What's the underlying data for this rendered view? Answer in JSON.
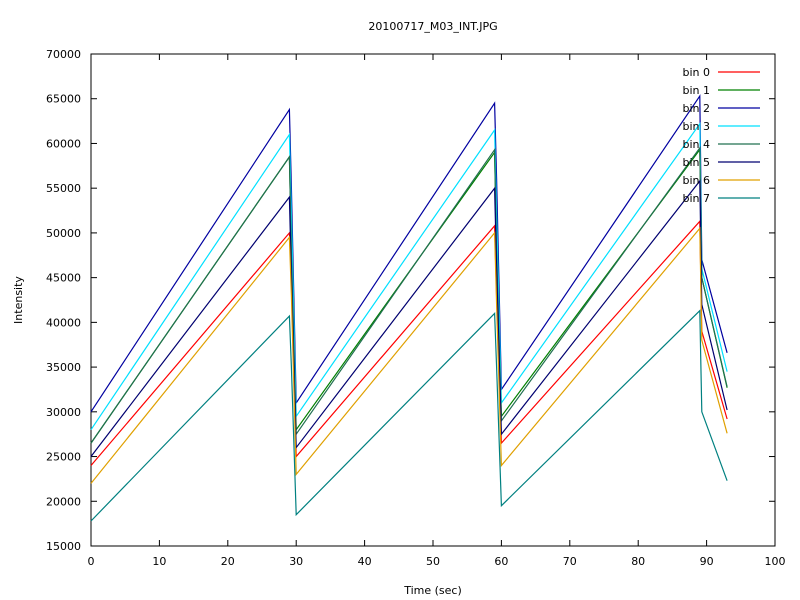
{
  "chart_data": {
    "type": "line",
    "title": "20100717_M03_INT.JPG",
    "xlabel": "Time (sec)",
    "ylabel": "Intensity",
    "xlim": [
      0,
      100
    ],
    "ylim": [
      15000,
      70000
    ],
    "xticks": [
      0,
      10,
      20,
      30,
      40,
      50,
      60,
      70,
      80,
      90,
      100
    ],
    "yticks": [
      15000,
      20000,
      25000,
      30000,
      35000,
      40000,
      45000,
      50000,
      55000,
      60000,
      65000,
      70000
    ],
    "grid": false,
    "legend_position": "top-right",
    "series": [
      {
        "name": "bin 0",
        "color": "#ff0000",
        "x": [
          0,
          29,
          29.3,
          30,
          59,
          59.3,
          60,
          89,
          89.3,
          93
        ],
        "y": [
          24000,
          50000,
          45000,
          25000,
          50800,
          43000,
          26500,
          51300,
          39000,
          29200
        ]
      },
      {
        "name": "bin 1",
        "color": "#008000",
        "x": [
          0,
          29,
          29.3,
          30,
          59,
          59.3,
          60,
          89,
          89.3,
          93
        ],
        "y": [
          26500,
          58500,
          48000,
          28000,
          59000,
          48000,
          29500,
          59300,
          45000,
          32700
        ]
      },
      {
        "name": "bin 2",
        "color": "#0000a0",
        "x": [
          0,
          29,
          29.3,
          30,
          59,
          59.3,
          60,
          89,
          89.3,
          93
        ],
        "y": [
          30000,
          63800,
          55000,
          31000,
          64500,
          56000,
          32500,
          65300,
          47000,
          36600
        ]
      },
      {
        "name": "bin 3",
        "color": "#00e0ff",
        "x": [
          0,
          29,
          29.3,
          30,
          59,
          59.3,
          60,
          89,
          89.3,
          93
        ],
        "y": [
          28000,
          61000,
          52000,
          29500,
          61500,
          52000,
          31000,
          62200,
          46000,
          34500
        ]
      },
      {
        "name": "bin 4",
        "color": "#207050",
        "x": [
          0,
          29,
          29.3,
          30,
          59,
          59.3,
          60,
          89,
          89.3,
          93
        ],
        "y": [
          26500,
          58500,
          48000,
          27500,
          59300,
          48000,
          29000,
          59500,
          45000,
          32800
        ]
      },
      {
        "name": "bin 5",
        "color": "#000070",
        "x": [
          0,
          29,
          29.3,
          30,
          59,
          59.3,
          60,
          89,
          89.3,
          93
        ],
        "y": [
          25000,
          54000,
          45000,
          26000,
          55000,
          46000,
          27500,
          55800,
          42000,
          30200
        ]
      },
      {
        "name": "bin 6",
        "color": "#e0a000",
        "x": [
          0,
          29,
          29.3,
          30,
          59,
          59.3,
          60,
          89,
          89.3,
          93
        ],
        "y": [
          22000,
          49500,
          43000,
          23000,
          50000,
          42000,
          24000,
          50500,
          38000,
          27600
        ]
      },
      {
        "name": "bin 7",
        "color": "#008080",
        "x": [
          0,
          29,
          29.3,
          30,
          59,
          59.3,
          60,
          89,
          89.3,
          93
        ],
        "y": [
          17800,
          40700,
          35000,
          18500,
          41000,
          35000,
          19500,
          41300,
          30000,
          22300
        ]
      }
    ]
  }
}
